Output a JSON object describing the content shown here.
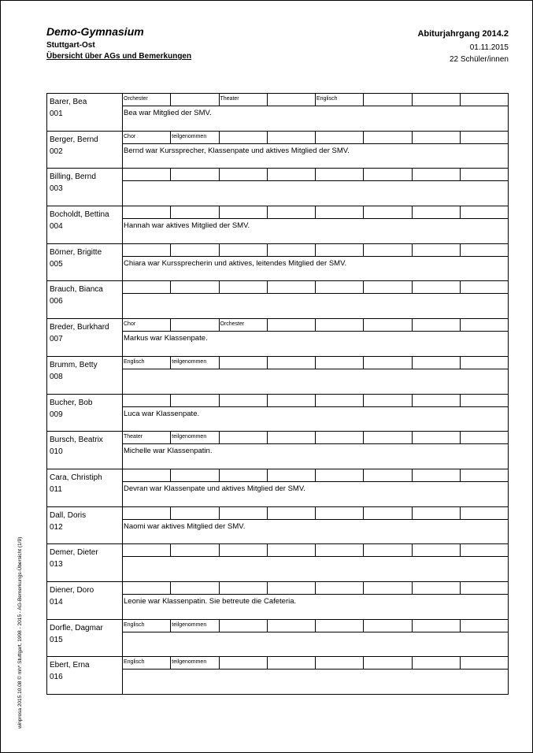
{
  "header": {
    "school": "Demo-Gymnasium",
    "city": "Stuttgart-Ost",
    "title": "Übersicht über AGs und Bemerkungen",
    "year": "Abiturjahrgang  2014.2",
    "date": "01.11.2015",
    "count": "22 Schüler/innen"
  },
  "footer_side": "winprosa 2015.10.08 © mh* Stuttgart, 1998 - 2015 - AG-Bemerkungs-Übersicht (1/9)",
  "students": [
    {
      "name": "Barer, Bea",
      "nr": "001",
      "cells": [
        "Orchester",
        "",
        "Theater",
        "",
        "Englisch",
        "",
        "",
        ""
      ],
      "remark": "Bea war Mitglied der SMV."
    },
    {
      "name": "Berger, Bernd",
      "nr": "002",
      "cells": [
        "Chor",
        "teilgenommen",
        "",
        "",
        "",
        "",
        "",
        ""
      ],
      "remark": "Bernd war Kurssprecher, Klassenpate und aktives Mitglied der SMV."
    },
    {
      "name": "Billing, Bernd",
      "nr": "003",
      "cells": [
        "",
        "",
        "",
        "",
        "",
        "",
        "",
        ""
      ],
      "remark": ""
    },
    {
      "name": "Bocholdt, Bettina",
      "nr": "004",
      "cells": [
        "",
        "",
        "",
        "",
        "",
        "",
        "",
        ""
      ],
      "remark": "Hannah war aktives Mitglied der SMV."
    },
    {
      "name": "Börner, Brigitte",
      "nr": "005",
      "cells": [
        "",
        "",
        "",
        "",
        "",
        "",
        "",
        ""
      ],
      "remark": "Chiara war Kurssprecherin und aktives, leitendes Mitglied der SMV."
    },
    {
      "name": "Brauch, Bianca",
      "nr": "006",
      "cells": [
        "",
        "",
        "",
        "",
        "",
        "",
        "",
        ""
      ],
      "remark": ""
    },
    {
      "name": "Breder, Burkhard",
      "nr": "007",
      "cells": [
        "Chor",
        "",
        "Orchester",
        "",
        "",
        "",
        "",
        ""
      ],
      "remark": "Markus war Klassenpate."
    },
    {
      "name": "Brumm, Betty",
      "nr": "008",
      "cells": [
        "Englisch",
        "teilgenommen",
        "",
        "",
        "",
        "",
        "",
        ""
      ],
      "remark": ""
    },
    {
      "name": "Bucher, Bob",
      "nr": "009",
      "cells": [
        "",
        "",
        "",
        "",
        "",
        "",
        "",
        ""
      ],
      "remark": "Luca war Klassenpate."
    },
    {
      "name": "Bursch, Beatrix",
      "nr": "010",
      "cells": [
        "Theater",
        "teilgenommen",
        "",
        "",
        "",
        "",
        "",
        ""
      ],
      "remark": "Michelle war Klassenpatin."
    },
    {
      "name": "Cara, Christiph",
      "nr": "011",
      "cells": [
        "",
        "",
        "",
        "",
        "",
        "",
        "",
        ""
      ],
      "remark": "Devran war Klassenpate und aktives Mitglied der SMV."
    },
    {
      "name": "Dall, Doris",
      "nr": "012",
      "cells": [
        "",
        "",
        "",
        "",
        "",
        "",
        "",
        ""
      ],
      "remark": "Naomi war aktives Mitglied der SMV."
    },
    {
      "name": "Demer, Dieter",
      "nr": "013",
      "cells": [
        "",
        "",
        "",
        "",
        "",
        "",
        "",
        ""
      ],
      "remark": ""
    },
    {
      "name": "Diener, Doro",
      "nr": "014",
      "cells": [
        "",
        "",
        "",
        "",
        "",
        "",
        "",
        ""
      ],
      "remark": "Leonie war Klassenpatin. Sie betreute die Cafeteria."
    },
    {
      "name": "Dorfle, Dagmar",
      "nr": "015",
      "cells": [
        "Englisch",
        "teilgenommen",
        "",
        "",
        "",
        "",
        "",
        ""
      ],
      "remark": ""
    },
    {
      "name": "Ebert, Erna",
      "nr": "016",
      "cells": [
        "Englisch",
        "teilgenommen",
        "",
        "",
        "",
        "",
        "",
        ""
      ],
      "remark": ""
    }
  ]
}
